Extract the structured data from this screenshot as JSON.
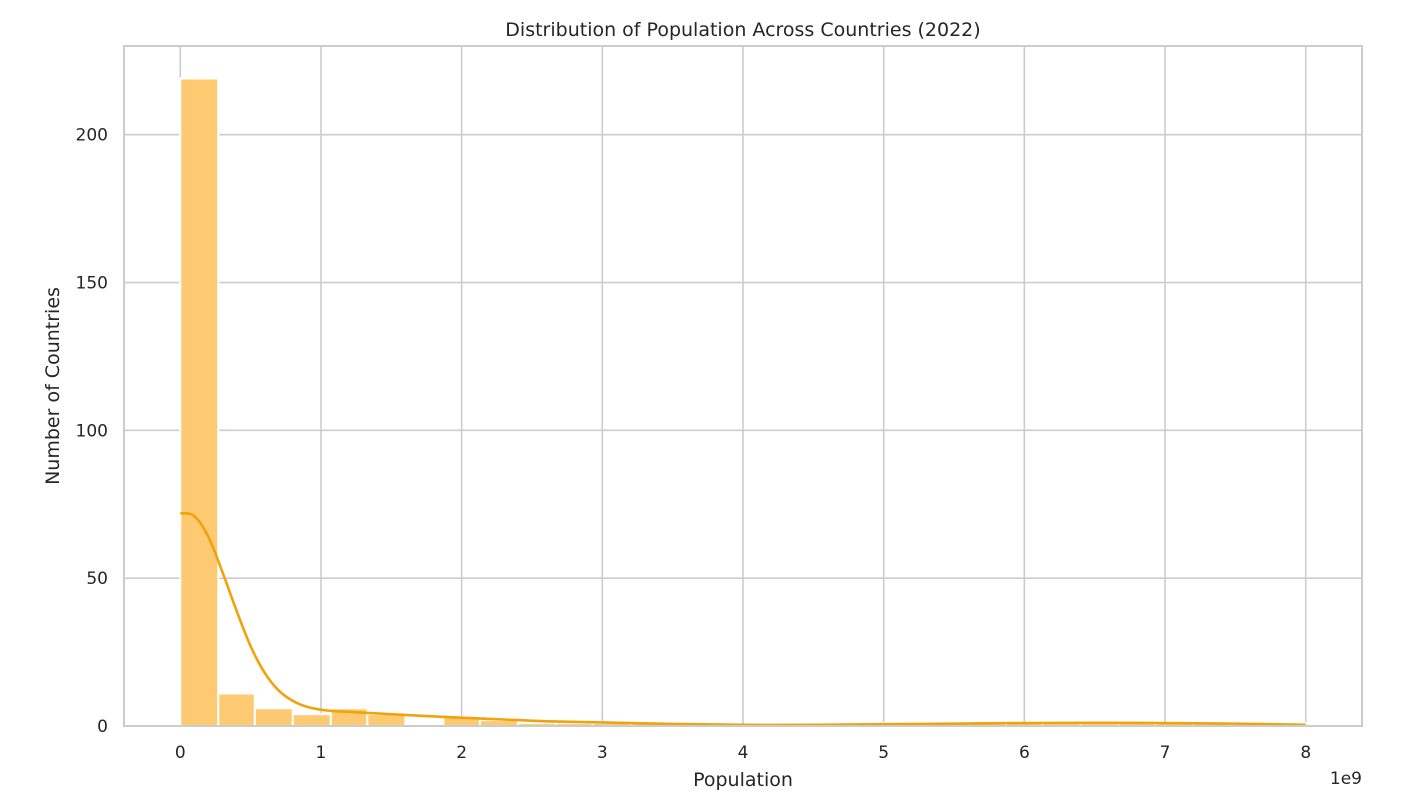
{
  "colors": {
    "bar_fill": "#fdca72",
    "bar_edge": "#ffffff",
    "kde_line": "#f0a30a",
    "grid": "#cccccc",
    "text": "#262626"
  },
  "chart_data": {
    "type": "bar",
    "subtype": "histogram_with_kde",
    "title": "Distribution of Population Across Countries (2022)",
    "xlabel": "Population",
    "ylabel": "Number of Countries",
    "x_offset_label": "1e9",
    "xlim": [
      -0.4,
      8.4
    ],
    "ylim": [
      0,
      230
    ],
    "x_ticks": [
      0,
      1,
      2,
      3,
      4,
      5,
      6,
      7,
      8
    ],
    "x_tick_labels": [
      "0",
      "1",
      "2",
      "3",
      "4",
      "5",
      "6",
      "7",
      "8"
    ],
    "y_ticks": [
      0,
      50,
      100,
      150,
      200
    ],
    "y_tick_labels": [
      "0",
      "50",
      "100",
      "150",
      "200"
    ],
    "grid": true,
    "bins": [
      {
        "x0": 0.0,
        "x1": 0.27,
        "count": 219
      },
      {
        "x0": 0.27,
        "x1": 0.53,
        "count": 11
      },
      {
        "x0": 0.53,
        "x1": 0.8,
        "count": 6
      },
      {
        "x0": 0.8,
        "x1": 1.07,
        "count": 4
      },
      {
        "x0": 1.07,
        "x1": 1.33,
        "count": 6
      },
      {
        "x0": 1.33,
        "x1": 1.6,
        "count": 4
      },
      {
        "x0": 1.6,
        "x1": 1.87,
        "count": 0
      },
      {
        "x0": 1.87,
        "x1": 2.13,
        "count": 3
      },
      {
        "x0": 2.13,
        "x1": 2.4,
        "count": 2
      },
      {
        "x0": 2.4,
        "x1": 2.67,
        "count": 1
      },
      {
        "x0": 2.67,
        "x1": 2.93,
        "count": 1
      },
      {
        "x0": 2.93,
        "x1": 3.2,
        "count": 1
      },
      {
        "x0": 3.2,
        "x1": 3.47,
        "count": 1
      },
      {
        "x0": 3.47,
        "x1": 3.73,
        "count": 0
      },
      {
        "x0": 3.73,
        "x1": 4.0,
        "count": 0
      },
      {
        "x0": 4.0,
        "x1": 4.27,
        "count": 0
      },
      {
        "x0": 4.27,
        "x1": 4.53,
        "count": 0
      },
      {
        "x0": 4.53,
        "x1": 4.8,
        "count": 1
      },
      {
        "x0": 4.8,
        "x1": 5.07,
        "count": 1
      },
      {
        "x0": 5.07,
        "x1": 5.33,
        "count": 1
      },
      {
        "x0": 5.33,
        "x1": 5.6,
        "count": 1
      },
      {
        "x0": 5.6,
        "x1": 5.87,
        "count": 1
      },
      {
        "x0": 5.87,
        "x1": 6.13,
        "count": 1
      },
      {
        "x0": 6.13,
        "x1": 6.4,
        "count": 1
      },
      {
        "x0": 6.4,
        "x1": 6.67,
        "count": 1
      },
      {
        "x0": 6.67,
        "x1": 6.93,
        "count": 1
      },
      {
        "x0": 6.93,
        "x1": 7.2,
        "count": 1
      },
      {
        "x0": 7.2,
        "x1": 7.47,
        "count": 1
      },
      {
        "x0": 7.47,
        "x1": 7.73,
        "count": 0
      },
      {
        "x0": 7.73,
        "x1": 8.0,
        "count": 1
      }
    ],
    "kde": {
      "x": [
        0,
        0.1,
        0.2,
        0.3,
        0.4,
        0.5,
        0.6,
        0.7,
        0.8,
        0.9,
        1.0,
        1.1,
        1.2,
        1.3,
        1.5,
        1.7,
        2.0,
        2.3,
        2.6,
        3.0,
        3.5,
        4.0,
        4.5,
        5.0,
        5.5,
        6.0,
        6.5,
        7.0,
        7.5,
        8.0
      ],
      "y": [
        72,
        71,
        64,
        52,
        39,
        27,
        18,
        12,
        8.5,
        6.5,
        5.5,
        5,
        4.8,
        4.5,
        4,
        3.5,
        2.8,
        2.2,
        1.6,
        1.2,
        0.7,
        0.4,
        0.4,
        0.6,
        0.8,
        1.0,
        1.1,
        1.0,
        0.8,
        0.4
      ]
    }
  }
}
